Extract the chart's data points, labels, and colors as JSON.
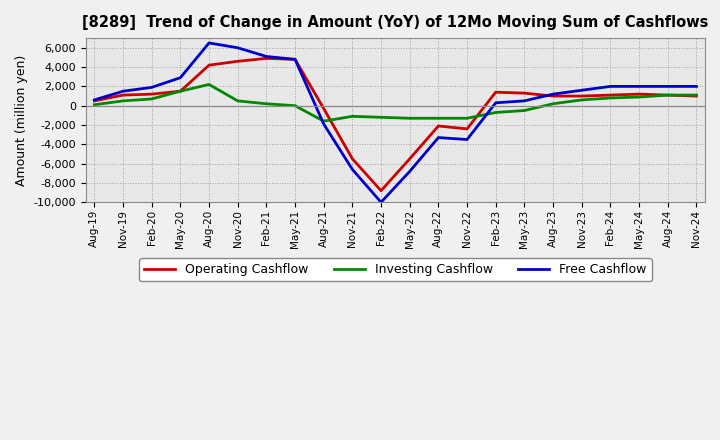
{
  "title": "[8289]  Trend of Change in Amount (YoY) of 12Mo Moving Sum of Cashflows",
  "ylabel": "Amount (million yen)",
  "x_labels": [
    "Aug-19",
    "Nov-19",
    "Feb-20",
    "May-20",
    "Aug-20",
    "Nov-20",
    "Feb-21",
    "May-21",
    "Aug-21",
    "Nov-21",
    "Feb-22",
    "May-22",
    "Aug-22",
    "Nov-22",
    "Feb-23",
    "May-23",
    "Aug-23",
    "Nov-23",
    "Feb-24",
    "May-24",
    "Aug-24",
    "Nov-24"
  ],
  "operating": [
    500,
    1100,
    1200,
    1500,
    4200,
    4600,
    4900,
    4800,
    -300,
    -5500,
    -8800,
    -5500,
    -2100,
    -2400,
    1400,
    1300,
    1000,
    1000,
    1100,
    1200,
    1100,
    1000
  ],
  "investing": [
    100,
    500,
    700,
    1500,
    2200,
    500,
    200,
    0,
    -1600,
    -1100,
    -1200,
    -1300,
    -1300,
    -1300,
    -700,
    -500,
    200,
    600,
    800,
    900,
    1100,
    1100
  ],
  "free": [
    600,
    1500,
    1900,
    2900,
    6500,
    6000,
    5100,
    4800,
    -1900,
    -6600,
    -10000,
    -6800,
    -3300,
    -3500,
    300,
    500,
    1200,
    1600,
    2000,
    2000,
    2000,
    2000
  ],
  "ylim": [
    -10000,
    7000
  ],
  "yticks": [
    -10000,
    -8000,
    -6000,
    -4000,
    -2000,
    0,
    2000,
    4000,
    6000
  ],
  "operating_color": "#cc0000",
  "investing_color": "#008800",
  "free_color": "#0000cc",
  "bg_color": "#f0f0f0",
  "plot_bg_color": "#e8e8e8",
  "grid_color": "#999999",
  "legend_labels": [
    "Operating Cashflow",
    "Investing Cashflow",
    "Free Cashflow"
  ]
}
